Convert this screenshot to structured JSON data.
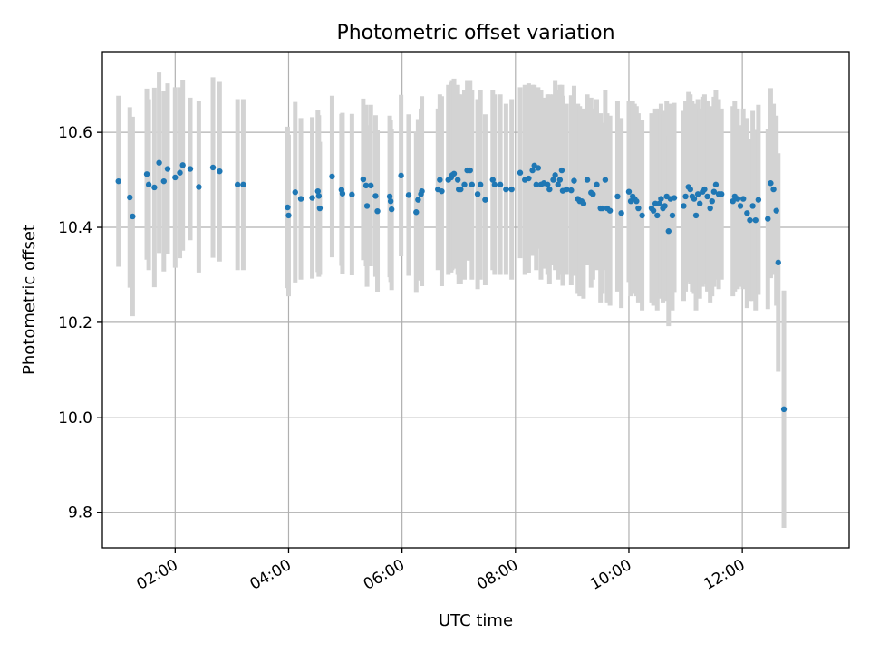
{
  "chart_data": {
    "type": "scatter",
    "title": "Photometric offset variation",
    "xlabel": "UTC time",
    "ylabel": "Photometric offset",
    "x_unit": "time of day (HH:MM, UTC)",
    "xlim": [
      "00:43",
      "13:53"
    ],
    "ylim": [
      9.725,
      10.77
    ],
    "x_ticks": [
      "02:00",
      "04:00",
      "06:00",
      "08:00",
      "10:00",
      "12:00"
    ],
    "y_ticks": [
      "9.8",
      "10.0",
      "10.2",
      "10.4",
      "10.6"
    ],
    "grid": true,
    "colors": {
      "point": "#1f77b4",
      "errorbar": "#d3d3d3",
      "grid": "#b0b0b0"
    },
    "points": [
      [
        "01:00",
        10.497,
        0.18
      ],
      [
        "01:12",
        10.463,
        0.19
      ],
      [
        "01:15",
        10.423,
        0.21
      ],
      [
        "01:30",
        10.512,
        0.18
      ],
      [
        "01:32",
        10.49,
        0.18
      ],
      [
        "01:38",
        10.484,
        0.21
      ],
      [
        "01:43",
        10.536,
        0.19
      ],
      [
        "01:48",
        10.497,
        0.19
      ],
      [
        "01:52",
        10.523,
        0.18
      ],
      [
        "02:00",
        10.505,
        0.19
      ],
      [
        "02:05",
        10.515,
        0.18
      ],
      [
        "02:08",
        10.531,
        0.18
      ],
      [
        "02:16",
        10.523,
        0.15
      ],
      [
        "02:25",
        10.485,
        0.18
      ],
      [
        "02:40",
        10.526,
        0.19
      ],
      [
        "02:47",
        10.518,
        0.19
      ],
      [
        "03:06",
        10.49,
        0.18
      ],
      [
        "03:12",
        10.49,
        0.18
      ],
      [
        "03:59",
        10.442,
        0.17
      ],
      [
        "04:00",
        10.425,
        0.17
      ],
      [
        "04:07",
        10.474,
        0.19
      ],
      [
        "04:13",
        10.46,
        0.17
      ],
      [
        "04:25",
        10.462,
        0.17
      ],
      [
        "04:31",
        10.476,
        0.17
      ],
      [
        "04:32",
        10.466,
        0.17
      ],
      [
        "04:33",
        10.44,
        0.14
      ],
      [
        "04:46",
        10.507,
        0.17
      ],
      [
        "04:56",
        10.479,
        0.16
      ],
      [
        "04:57",
        10.471,
        0.17
      ],
      [
        "05:07",
        10.469,
        0.17
      ],
      [
        "05:19",
        10.501,
        0.17
      ],
      [
        "05:22",
        10.488,
        0.17
      ],
      [
        "05:23",
        10.445,
        0.17
      ],
      [
        "05:27",
        10.488,
        0.17
      ],
      [
        "05:32",
        10.466,
        0.17
      ],
      [
        "05:34",
        10.434,
        0.17
      ],
      [
        "05:47",
        10.465,
        0.17
      ],
      [
        "05:48",
        10.455,
        0.17
      ],
      [
        "05:49",
        10.438,
        0.17
      ],
      [
        "05:59",
        10.509,
        0.17
      ],
      [
        "06:07",
        10.468,
        0.17
      ],
      [
        "06:15",
        10.432,
        0.17
      ],
      [
        "06:17",
        10.458,
        0.17
      ],
      [
        "06:20",
        10.47,
        0.18
      ],
      [
        "06:21",
        10.476,
        0.2
      ],
      [
        "06:38",
        10.48,
        0.17
      ],
      [
        "06:40",
        10.5,
        0.18
      ],
      [
        "06:42",
        10.476,
        0.2
      ],
      [
        "06:49",
        10.5,
        0.2
      ],
      [
        "06:52",
        10.505,
        0.2
      ],
      [
        "06:53",
        10.51,
        0.2
      ],
      [
        "06:55",
        10.513,
        0.2
      ],
      [
        "06:59",
        10.5,
        0.2
      ],
      [
        "07:00",
        10.48,
        0.2
      ],
      [
        "07:02",
        10.48,
        0.2
      ],
      [
        "07:06",
        10.49,
        0.2
      ],
      [
        "07:09",
        10.52,
        0.19
      ],
      [
        "07:12",
        10.52,
        0.19
      ],
      [
        "07:14",
        10.49,
        0.2
      ],
      [
        "07:20",
        10.47,
        0.2
      ],
      [
        "07:23",
        10.49,
        0.2
      ],
      [
        "07:28",
        10.458,
        0.18
      ],
      [
        "07:36",
        10.5,
        0.19
      ],
      [
        "07:38",
        10.49,
        0.19
      ],
      [
        "07:44",
        10.49,
        0.19
      ],
      [
        "07:50",
        10.48,
        0.18
      ],
      [
        "07:56",
        10.48,
        0.19
      ],
      [
        "08:05",
        10.515,
        0.18
      ],
      [
        "08:10",
        10.5,
        0.2
      ],
      [
        "08:14",
        10.503,
        0.2
      ],
      [
        "08:18",
        10.52,
        0.18
      ],
      [
        "08:20",
        10.53,
        0.17
      ],
      [
        "08:22",
        10.49,
        0.18
      ],
      [
        "08:24",
        10.525,
        0.17
      ],
      [
        "08:27",
        10.49,
        0.2
      ],
      [
        "08:30",
        10.493,
        0.18
      ],
      [
        "08:34",
        10.49,
        0.19
      ],
      [
        "08:36",
        10.48,
        0.2
      ],
      [
        "08:40",
        10.5,
        0.18
      ],
      [
        "08:42",
        10.51,
        0.2
      ],
      [
        "08:45",
        10.49,
        0.2
      ],
      [
        "08:47",
        10.5,
        0.2
      ],
      [
        "08:49",
        10.52,
        0.18
      ],
      [
        "08:50",
        10.477,
        0.2
      ],
      [
        "08:54",
        10.48,
        0.18
      ],
      [
        "08:59",
        10.478,
        0.2
      ],
      [
        "09:02",
        10.498,
        0.2
      ],
      [
        "09:06",
        10.46,
        0.2
      ],
      [
        "09:08",
        10.455,
        0.2
      ],
      [
        "09:10",
        10.455,
        0.18
      ],
      [
        "09:12",
        10.45,
        0.2
      ],
      [
        "09:16",
        10.5,
        0.18
      ],
      [
        "09:20",
        10.473,
        0.2
      ],
      [
        "09:22",
        10.47,
        0.18
      ],
      [
        "09:26",
        10.49,
        0.18
      ],
      [
        "09:30",
        10.44,
        0.2
      ],
      [
        "09:32",
        10.44,
        0.18
      ],
      [
        "09:35",
        10.5,
        0.19
      ],
      [
        "09:37",
        10.44,
        0.2
      ],
      [
        "09:40",
        10.435,
        0.2
      ],
      [
        "09:48",
        10.465,
        0.2
      ],
      [
        "09:52",
        10.43,
        0.2
      ],
      [
        "10:00",
        10.475,
        0.19
      ],
      [
        "10:02",
        10.455,
        0.2
      ],
      [
        "10:04",
        10.465,
        0.2
      ],
      [
        "10:06",
        10.46,
        0.2
      ],
      [
        "10:08",
        10.455,
        0.2
      ],
      [
        "10:10",
        10.44,
        0.2
      ],
      [
        "10:14",
        10.425,
        0.2
      ],
      [
        "10:24",
        10.44,
        0.2
      ],
      [
        "10:26",
        10.435,
        0.2
      ],
      [
        "10:28",
        10.45,
        0.2
      ],
      [
        "10:30",
        10.425,
        0.2
      ],
      [
        "10:32",
        10.45,
        0.2
      ],
      [
        "10:34",
        10.46,
        0.2
      ],
      [
        "10:36",
        10.44,
        0.2
      ],
      [
        "10:38",
        10.445,
        0.2
      ],
      [
        "10:40",
        10.465,
        0.2
      ],
      [
        "10:42",
        10.392,
        0.2
      ],
      [
        "10:44",
        10.46,
        0.2
      ],
      [
        "10:46",
        10.425,
        0.2
      ],
      [
        "10:48",
        10.462,
        0.2
      ],
      [
        "10:58",
        10.445,
        0.2
      ],
      [
        "11:00",
        10.465,
        0.2
      ],
      [
        "11:03",
        10.485,
        0.2
      ],
      [
        "11:05",
        10.48,
        0.2
      ],
      [
        "11:07",
        10.465,
        0.2
      ],
      [
        "11:09",
        10.46,
        0.2
      ],
      [
        "11:11",
        10.425,
        0.2
      ],
      [
        "11:13",
        10.47,
        0.2
      ],
      [
        "11:15",
        10.45,
        0.2
      ],
      [
        "11:18",
        10.475,
        0.2
      ],
      [
        "11:20",
        10.48,
        0.2
      ],
      [
        "11:23",
        10.465,
        0.2
      ],
      [
        "11:26",
        10.44,
        0.2
      ],
      [
        "11:28",
        10.455,
        0.2
      ],
      [
        "11:30",
        10.475,
        0.2
      ],
      [
        "11:32",
        10.49,
        0.2
      ],
      [
        "11:35",
        10.47,
        0.2
      ],
      [
        "11:38",
        10.47,
        0.18
      ],
      [
        "11:50",
        10.455,
        0.2
      ],
      [
        "11:52",
        10.465,
        0.2
      ],
      [
        "11:55",
        10.46,
        0.19
      ],
      [
        "11:58",
        10.445,
        0.17
      ],
      [
        "12:01",
        10.46,
        0.19
      ],
      [
        "12:05",
        10.43,
        0.2
      ],
      [
        "12:08",
        10.415,
        0.17
      ],
      [
        "12:11",
        10.445,
        0.2
      ],
      [
        "12:14",
        10.415,
        0.19
      ],
      [
        "12:17",
        10.458,
        0.2
      ],
      [
        "12:27",
        10.418,
        0.19
      ],
      [
        "12:30",
        10.493,
        0.2
      ],
      [
        "12:33",
        10.48,
        0.18
      ],
      [
        "12:36",
        10.435,
        0.2
      ],
      [
        "12:38",
        10.326,
        0.23
      ],
      [
        "12:44",
        10.017,
        0.25
      ]
    ]
  }
}
